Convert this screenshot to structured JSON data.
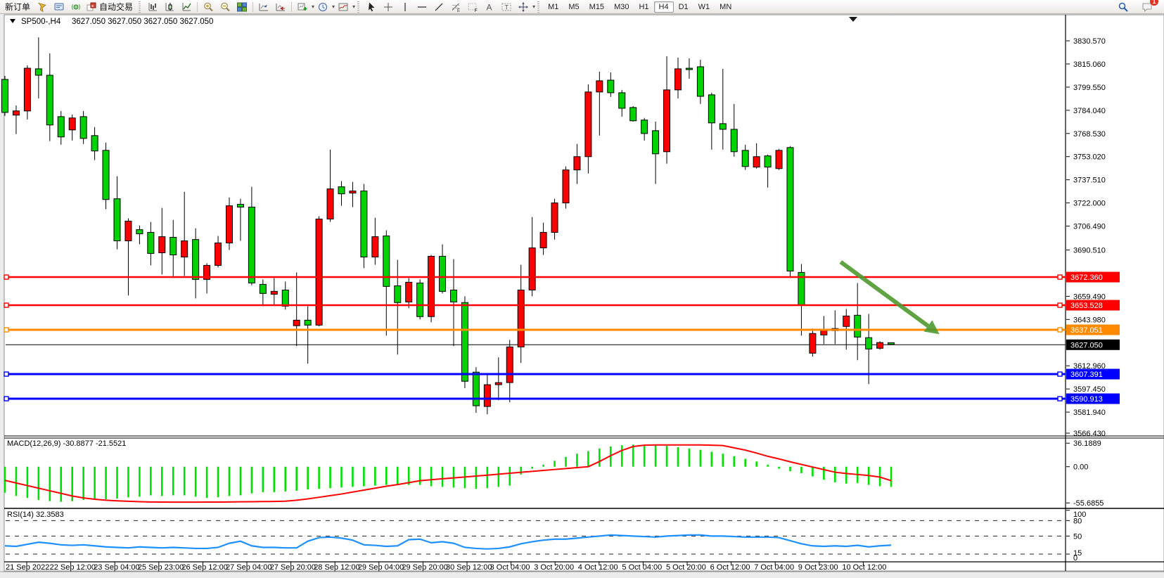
{
  "toolbar": {
    "new_order_label": "新订单",
    "autotrading_label": "自动交易",
    "left_icon_groups": [
      {
        "grip": false,
        "items": [
          {
            "name": "new-order-button",
            "type": "label",
            "bind": "toolbar.new_order_label"
          },
          {
            "name": "funnel-icon",
            "type": "icon"
          },
          {
            "name": "terminal-icon",
            "type": "icon"
          },
          {
            "name": "broadcast-icon",
            "type": "icon"
          },
          {
            "name": "autotrading-button",
            "type": "icolabel",
            "bind": "toolbar.autotrading_label",
            "icon": "autotrade-icon"
          }
        ]
      },
      {
        "grip": true,
        "items": [
          {
            "name": "bar-chart-icon",
            "type": "icon"
          },
          {
            "name": "candlestick-chart-icon",
            "type": "icon"
          },
          {
            "name": "line-chart-icon",
            "type": "icon"
          }
        ]
      },
      {
        "sep": true,
        "items": [
          {
            "name": "zoom-in-icon",
            "type": "icon"
          },
          {
            "name": "zoom-out-icon",
            "type": "icon"
          },
          {
            "name": "tile-windows-icon",
            "type": "icon"
          }
        ]
      },
      {
        "sep": true,
        "items": [
          {
            "name": "chart-shift-icon",
            "type": "icon"
          },
          {
            "name": "chart-autoscroll-icon",
            "type": "icon"
          }
        ]
      },
      {
        "sep": true,
        "items": [
          {
            "name": "add-chart-icon",
            "type": "icon",
            "dropdown": true
          },
          {
            "name": "period-clock-icon",
            "type": "icon",
            "dropdown": true
          },
          {
            "name": "template-chart-icon",
            "type": "icon",
            "dropdown": true
          }
        ]
      },
      {
        "grip": true,
        "items": [
          {
            "name": "cursor-icon",
            "type": "icon"
          },
          {
            "name": "crosshair-icon",
            "type": "icon"
          },
          {
            "name": "vertical-line-icon",
            "type": "icon"
          },
          {
            "name": "horizontal-line-icon",
            "type": "icon"
          },
          {
            "name": "trendline-icon",
            "type": "icon"
          },
          {
            "name": "fibonacci-icon",
            "type": "icon"
          },
          {
            "name": "fibo-grid-icon",
            "type": "icon"
          },
          {
            "name": "text-icon",
            "type": "icon"
          },
          {
            "name": "text-label-icon",
            "type": "icon"
          },
          {
            "name": "arrows-icon",
            "type": "icon",
            "dropdown": true
          }
        ]
      }
    ],
    "timeframes": [
      {
        "label": "M1"
      },
      {
        "label": "M5"
      },
      {
        "label": "M15"
      },
      {
        "label": "M30"
      },
      {
        "label": "H1"
      },
      {
        "label": "H4",
        "active": true
      },
      {
        "label": "D1"
      },
      {
        "label": "W1"
      },
      {
        "label": "MN"
      }
    ],
    "right_icons": [
      {
        "name": "search-icon"
      },
      {
        "name": "chat-icon",
        "badge": "1"
      }
    ]
  },
  "chart": {
    "title_symbol": "SP500-,H4",
    "title_quotes": "3627.050 3627.050 3627.050 3627.050",
    "price_axis_ticks": [
      "3830.570",
      "3815.060",
      "3799.550",
      "3784.040",
      "3768.530",
      "3753.020",
      "3737.510",
      "3722.000",
      "3706.490",
      "3690.510",
      "3659.490",
      "3643.980",
      "3612.960",
      "3597.450",
      "3581.940",
      "3566.430"
    ],
    "hlines": [
      {
        "value": "3672.360",
        "price": 3672.36,
        "color": "#ff0000",
        "width": 2.5
      },
      {
        "value": "3653.528",
        "price": 3653.528,
        "color": "#ff0000",
        "width": 2.5
      },
      {
        "value": "3637.051",
        "price": 3637.051,
        "color": "#ff8a00",
        "width": 3
      },
      {
        "value": "3607.391",
        "price": 3607.391,
        "color": "#0000ff",
        "width": 3
      },
      {
        "value": "3590.913",
        "price": 3590.913,
        "color": "#0000ff",
        "width": 3
      }
    ],
    "bid_line": {
      "value": "3627.050",
      "price": 3627.05,
      "color": "#000000"
    },
    "time_axis": [
      "21 Sep 2022",
      "22 Sep 12:00",
      "23 Sep 04:00",
      "25 Sep 23:00",
      "26 Sep 12:00",
      "27 Sep 04:00",
      "27 Sep 20:00",
      "28 Sep 12:00",
      "29 Sep 04:00",
      "29 Sep 20:00",
      "30 Sep 12:00",
      "3 Oct 04:00",
      "3 Oct 20:00",
      "4 Oct 12:00",
      "5 Oct 04:00",
      "5 Oct 20:00",
      "6 Oct 12:00",
      "7 Oct 04:00",
      "9 Oct 23:00",
      "10 Oct 12:00"
    ],
    "macd_panel": {
      "label": "MACD(12,26,9)",
      "values": "-30.8877 -21.5521",
      "scale": [
        "36.1889",
        "0.00",
        "-55.6855"
      ]
    },
    "rsi_panel": {
      "label": "RSI(14)",
      "value": "32.3583",
      "scale": [
        "100",
        "80",
        "50",
        "15",
        "0"
      ],
      "levels": [
        80,
        50,
        15
      ]
    },
    "colors": {
      "bull": "#ff0000",
      "bear": "#00d300",
      "wick": "#000000",
      "macd_hist": "#00e000",
      "macd_signal": "#ff0000",
      "rsi_line": "#1e90ff",
      "arrow": "#4e9a2e",
      "axis_text": "#000000"
    }
  },
  "chart_data": {
    "type": "candlestick",
    "symbol": "SP500-",
    "timeframe": "H4",
    "note": "red body = up candle, green body = down candle (CN convention)",
    "ylim": [
      3565.5,
      3840.0
    ],
    "candles": [
      [
        3804.7,
        3807.1,
        3780.3,
        3782.6
      ],
      [
        3780.8,
        3787.3,
        3768.1,
        3783.6
      ],
      [
        3783.6,
        3814.1,
        3777.9,
        3812.2
      ],
      [
        3811.8,
        3832.9,
        3792.0,
        3807.5
      ],
      [
        3807.5,
        3822.1,
        3763.4,
        3774.2
      ],
      [
        3779.8,
        3783.6,
        3761.0,
        3766.2
      ],
      [
        3770.9,
        3781.2,
        3763.8,
        3778.9
      ],
      [
        3779.8,
        3783.6,
        3761.5,
        3765.2
      ],
      [
        3767.1,
        3772.8,
        3750.7,
        3756.8
      ],
      [
        3757.2,
        3762.4,
        3717.8,
        3724.3
      ],
      [
        3724.8,
        3739.8,
        3691.0,
        3696.6
      ],
      [
        3696.6,
        3711.7,
        3660.0,
        3709.8
      ],
      [
        3704.1,
        3706.9,
        3694.3,
        3701.3
      ],
      [
        3702.3,
        3709.3,
        3680.2,
        3688.2
      ],
      [
        3688.6,
        3718.7,
        3674.1,
        3699.4
      ],
      [
        3699.0,
        3710.7,
        3671.7,
        3687.2
      ],
      [
        3685.8,
        3729.5,
        3673.1,
        3696.6
      ],
      [
        3697.5,
        3705.0,
        3658.1,
        3670.8
      ],
      [
        3670.8,
        3681.6,
        3661.4,
        3680.2
      ],
      [
        3680.2,
        3699.9,
        3678.8,
        3695.2
      ],
      [
        3695.2,
        3725.7,
        3690.5,
        3720.1
      ],
      [
        3721.1,
        3724.8,
        3696.6,
        3719.2
      ],
      [
        3719.2,
        3732.8,
        3666.9,
        3668.4
      ],
      [
        3667.5,
        3670.8,
        3652.9,
        3661.4
      ],
      [
        3660.9,
        3671.7,
        3653.4,
        3662.8
      ],
      [
        3663.7,
        3669.4,
        3650.6,
        3652.9
      ],
      [
        3639.8,
        3675.5,
        3626.1,
        3643.5
      ],
      [
        3643.5,
        3652.9,
        3614.4,
        3640.2
      ],
      [
        3640.2,
        3713.1,
        3639.3,
        3711.2
      ],
      [
        3711.2,
        3757.7,
        3709.3,
        3731.4
      ],
      [
        3732.8,
        3736.6,
        3720.1,
        3728.1
      ],
      [
        3728.6,
        3736.1,
        3719.2,
        3730.0
      ],
      [
        3730.0,
        3734.7,
        3678.3,
        3685.8
      ],
      [
        3685.8,
        3712.1,
        3680.6,
        3699.4
      ],
      [
        3699.9,
        3703.7,
        3633.2,
        3666.1
      ],
      [
        3666.5,
        3683.9,
        3620.5,
        3655.3
      ],
      [
        3655.7,
        3671.7,
        3651.5,
        3668.9
      ],
      [
        3668.4,
        3670.8,
        3644.0,
        3645.9
      ],
      [
        3645.9,
        3687.2,
        3642.1,
        3686.3
      ],
      [
        3686.3,
        3694.3,
        3661.4,
        3662.8
      ],
      [
        3663.7,
        3684.4,
        3626.1,
        3655.7
      ],
      [
        3655.3,
        3659.5,
        3597.9,
        3602.6
      ],
      [
        3608.7,
        3612.0,
        3581.5,
        3586.2
      ],
      [
        3585.7,
        3607.8,
        3580.5,
        3600.3
      ],
      [
        3600.3,
        3618.6,
        3589.9,
        3601.7
      ],
      [
        3601.7,
        3630.3,
        3588.5,
        3625.6
      ],
      [
        3625.6,
        3680.6,
        3614.8,
        3663.7
      ],
      [
        3663.7,
        3712.6,
        3659.5,
        3691.9
      ],
      [
        3691.9,
        3708.8,
        3687.2,
        3702.3
      ],
      [
        3702.3,
        3724.8,
        3697.5,
        3722.0
      ],
      [
        3722.0,
        3746.4,
        3718.2,
        3744.1
      ],
      [
        3744.1,
        3761.5,
        3734.7,
        3753.0
      ],
      [
        3753.0,
        3801.4,
        3741.7,
        3796.3
      ],
      [
        3796.3,
        3809.9,
        3767.1,
        3803.8
      ],
      [
        3804.2,
        3809.4,
        3793.0,
        3795.8
      ],
      [
        3795.8,
        3797.7,
        3779.8,
        3785.4
      ],
      [
        3785.9,
        3786.8,
        3776.5,
        3777.0
      ],
      [
        3777.5,
        3778.9,
        3763.8,
        3768.5
      ],
      [
        3770.4,
        3776.5,
        3734.7,
        3754.9
      ],
      [
        3756.3,
        3820.2,
        3748.3,
        3797.7
      ],
      [
        3797.7,
        3819.3,
        3792.0,
        3811.8
      ],
      [
        3812.2,
        3818.8,
        3805.2,
        3811.3
      ],
      [
        3813.2,
        3817.9,
        3788.3,
        3793.4
      ],
      [
        3794.4,
        3795.8,
        3757.7,
        3775.6
      ],
      [
        3775.1,
        3811.8,
        3757.7,
        3771.3
      ],
      [
        3771.3,
        3788.3,
        3753.0,
        3756.3
      ],
      [
        3757.2,
        3761.0,
        3744.1,
        3746.4
      ],
      [
        3746.0,
        3762.0,
        3745.0,
        3753.0
      ],
      [
        3753.5,
        3754.4,
        3732.3,
        3746.0
      ],
      [
        3745.0,
        3758.2,
        3744.1,
        3757.2
      ],
      [
        3759.1,
        3760.1,
        3672.2,
        3676.4
      ],
      [
        3675.5,
        3681.1,
        3633.2,
        3653.4
      ],
      [
        3621.4,
        3637.9,
        3619.1,
        3634.6
      ],
      [
        3633.6,
        3646.3,
        3627.5,
        3636.9
      ],
      [
        3636.5,
        3650.1,
        3627.5,
        3637.9
      ],
      [
        3639.3,
        3651.0,
        3623.8,
        3646.3
      ],
      [
        3646.8,
        3668.4,
        3616.7,
        3632.2
      ],
      [
        3631.8,
        3647.7,
        3600.7,
        3624.2
      ],
      [
        3624.7,
        3629.4,
        3623.8,
        3628.5
      ],
      [
        3628.4,
        3628.5,
        3627.1,
        3627.3
      ]
    ],
    "macd": {
      "type": "bar+line",
      "ylim": [
        -63,
        44
      ],
      "histogram": [
        -40,
        -45,
        -48,
        -51,
        -53,
        -54,
        -53,
        -51,
        -49,
        -50,
        -49,
        -47,
        -46,
        -44,
        -45,
        -44,
        -44,
        -46,
        -48,
        -47,
        -45,
        -44,
        -41,
        -39,
        -39,
        -38,
        -37,
        -35,
        -34,
        -33,
        -32,
        -31,
        -30,
        -29,
        -28,
        -28,
        -28,
        -28,
        -30,
        -31,
        -32,
        -33,
        -34,
        -33,
        -31,
        -29,
        -12,
        -3,
        3,
        9,
        15,
        20,
        24,
        28,
        31,
        33,
        34,
        34,
        33,
        32,
        30,
        28,
        26,
        23,
        20,
        16,
        12,
        8,
        3,
        -3,
        -7,
        -10,
        -15,
        -20,
        -24,
        -26,
        -25,
        -28,
        -30,
        -31
      ],
      "signal": [
        -21,
        -25,
        -29,
        -33,
        -37,
        -41,
        -45,
        -48,
        -50,
        -51.5,
        -52.5,
        -53.2,
        -53.8,
        -54.2,
        -54.4,
        -54.5,
        -54.5,
        -54.5,
        -54.4,
        -54.3,
        -54.2,
        -54,
        -53.8,
        -53.6,
        -53.4,
        -53,
        -51.5,
        -49.5,
        -47,
        -44.5,
        -42,
        -39,
        -36,
        -33,
        -30,
        -27.5,
        -24.5,
        -21.5,
        -20,
        -18.6,
        -17.2,
        -15.8,
        -14.4,
        -13,
        -11.5,
        -10,
        -8.6,
        -7.2,
        -5.7,
        -4.3,
        -2.9,
        -1.4,
        0,
        8,
        17,
        25,
        31,
        33,
        33.5,
        33.5,
        33.5,
        33.5,
        33.5,
        33,
        32.5,
        29,
        25.5,
        21,
        16,
        12,
        7.5,
        3.5,
        -0.5,
        -4.5,
        -8.5,
        -10.5,
        -12,
        -13.5,
        -16,
        -21.5
      ]
    },
    "rsi": {
      "type": "line",
      "ylim": [
        0,
        102.3
      ],
      "values": [
        31,
        30,
        34,
        38,
        36,
        33,
        32,
        33,
        31,
        29,
        28,
        27,
        29,
        28,
        27,
        28,
        27,
        26,
        26,
        28,
        36,
        40,
        31,
        28,
        28,
        27,
        27,
        40,
        47,
        48,
        46,
        42,
        33,
        32,
        30,
        31,
        43,
        44,
        37,
        39,
        36,
        28,
        26,
        25,
        26,
        29,
        35,
        39,
        42,
        44,
        44,
        46,
        48,
        50,
        52,
        51,
        50,
        49,
        48,
        50,
        51,
        52,
        52,
        50,
        50,
        49,
        48,
        48,
        48,
        47,
        41,
        35,
        31,
        30,
        31,
        30,
        32,
        29,
        31,
        32.4
      ]
    },
    "annotations": [
      {
        "type": "arrow",
        "from_bar": 74.5,
        "from_price": 3682.5,
        "to_bar": 83.3,
        "to_price": 3634.1,
        "color": "#4e9a2e"
      }
    ]
  }
}
